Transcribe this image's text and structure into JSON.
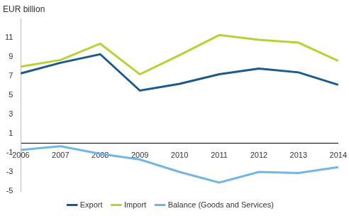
{
  "chart_data": {
    "type": "line",
    "ylabel": "EUR billion",
    "categories": [
      "2006",
      "2007",
      "2008",
      "2009",
      "2010",
      "2011",
      "2012",
      "2013",
      "2014"
    ],
    "series": [
      {
        "name": "Export",
        "color": "#1a5a8c",
        "values": [
          7.3,
          8.4,
          9.3,
          5.5,
          6.2,
          7.2,
          7.8,
          7.4,
          6.1
        ]
      },
      {
        "name": "Import",
        "color": "#b5d334",
        "values": [
          8.0,
          8.7,
          10.4,
          7.2,
          9.2,
          11.3,
          10.8,
          10.5,
          8.6
        ]
      },
      {
        "name": "Balance (Goods and Services)",
        "color": "#74b6e2",
        "values": [
          -0.7,
          -0.3,
          -1.1,
          -1.7,
          -3.0,
          -4.1,
          -3.0,
          -3.1,
          -2.5
        ]
      }
    ],
    "ylim": [
      -5,
      13
    ],
    "yticks": [
      -5,
      -3,
      -1,
      1,
      3,
      5,
      7,
      9,
      11
    ],
    "grid": false,
    "legend": "bottom"
  }
}
